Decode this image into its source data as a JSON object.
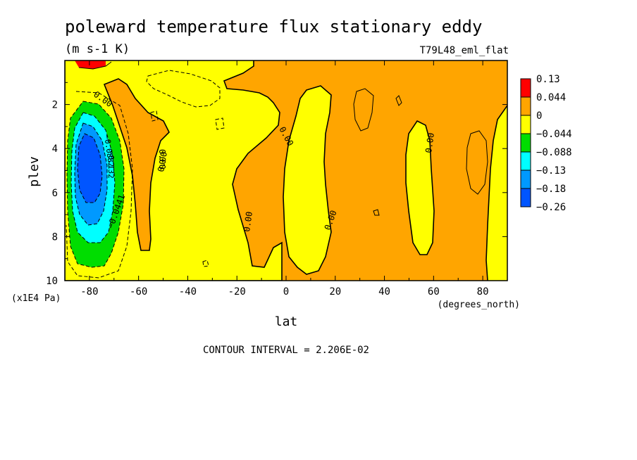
{
  "chart_data": {
    "type": "heatmap",
    "title": "poleward temperature flux stationary eddy",
    "units": "(m s-1 K)",
    "dataset": "T79L48_eml_flat",
    "xlabel": "lat",
    "x_units": "(degrees_north)",
    "ylabel": "plev",
    "y_units": "(x1E4 Pa)",
    "xlim": [
      -90,
      90
    ],
    "ylim": [
      10,
      0
    ],
    "x_ticks": [
      "-80",
      "-60",
      "-40",
      "-20",
      "0",
      "20",
      "40",
      "60",
      "80"
    ],
    "y_ticks": [
      "2",
      "4",
      "6",
      "8",
      "10"
    ],
    "colorbar": {
      "labels": [
        "0.13",
        "0.044",
        "0",
        "−0.044",
        "−0.088",
        "−0.13",
        "−0.18",
        "−0.26"
      ],
      "colors": [
        "#ff0000",
        "#ffa500",
        "#ffff00",
        "#00dd00",
        "#00ffff",
        "#0099ff",
        "#0055ff"
      ]
    },
    "contour_labels": [
      "0.00",
      "0.00",
      "0.00",
      "0.00",
      "0.00",
      "0.00",
      "0.00",
      "−0.0882",
      "−0.132",
      "−0.0441"
    ],
    "contour_interval_text": "CONTOUR INTERVAL = 2.206E-02"
  }
}
